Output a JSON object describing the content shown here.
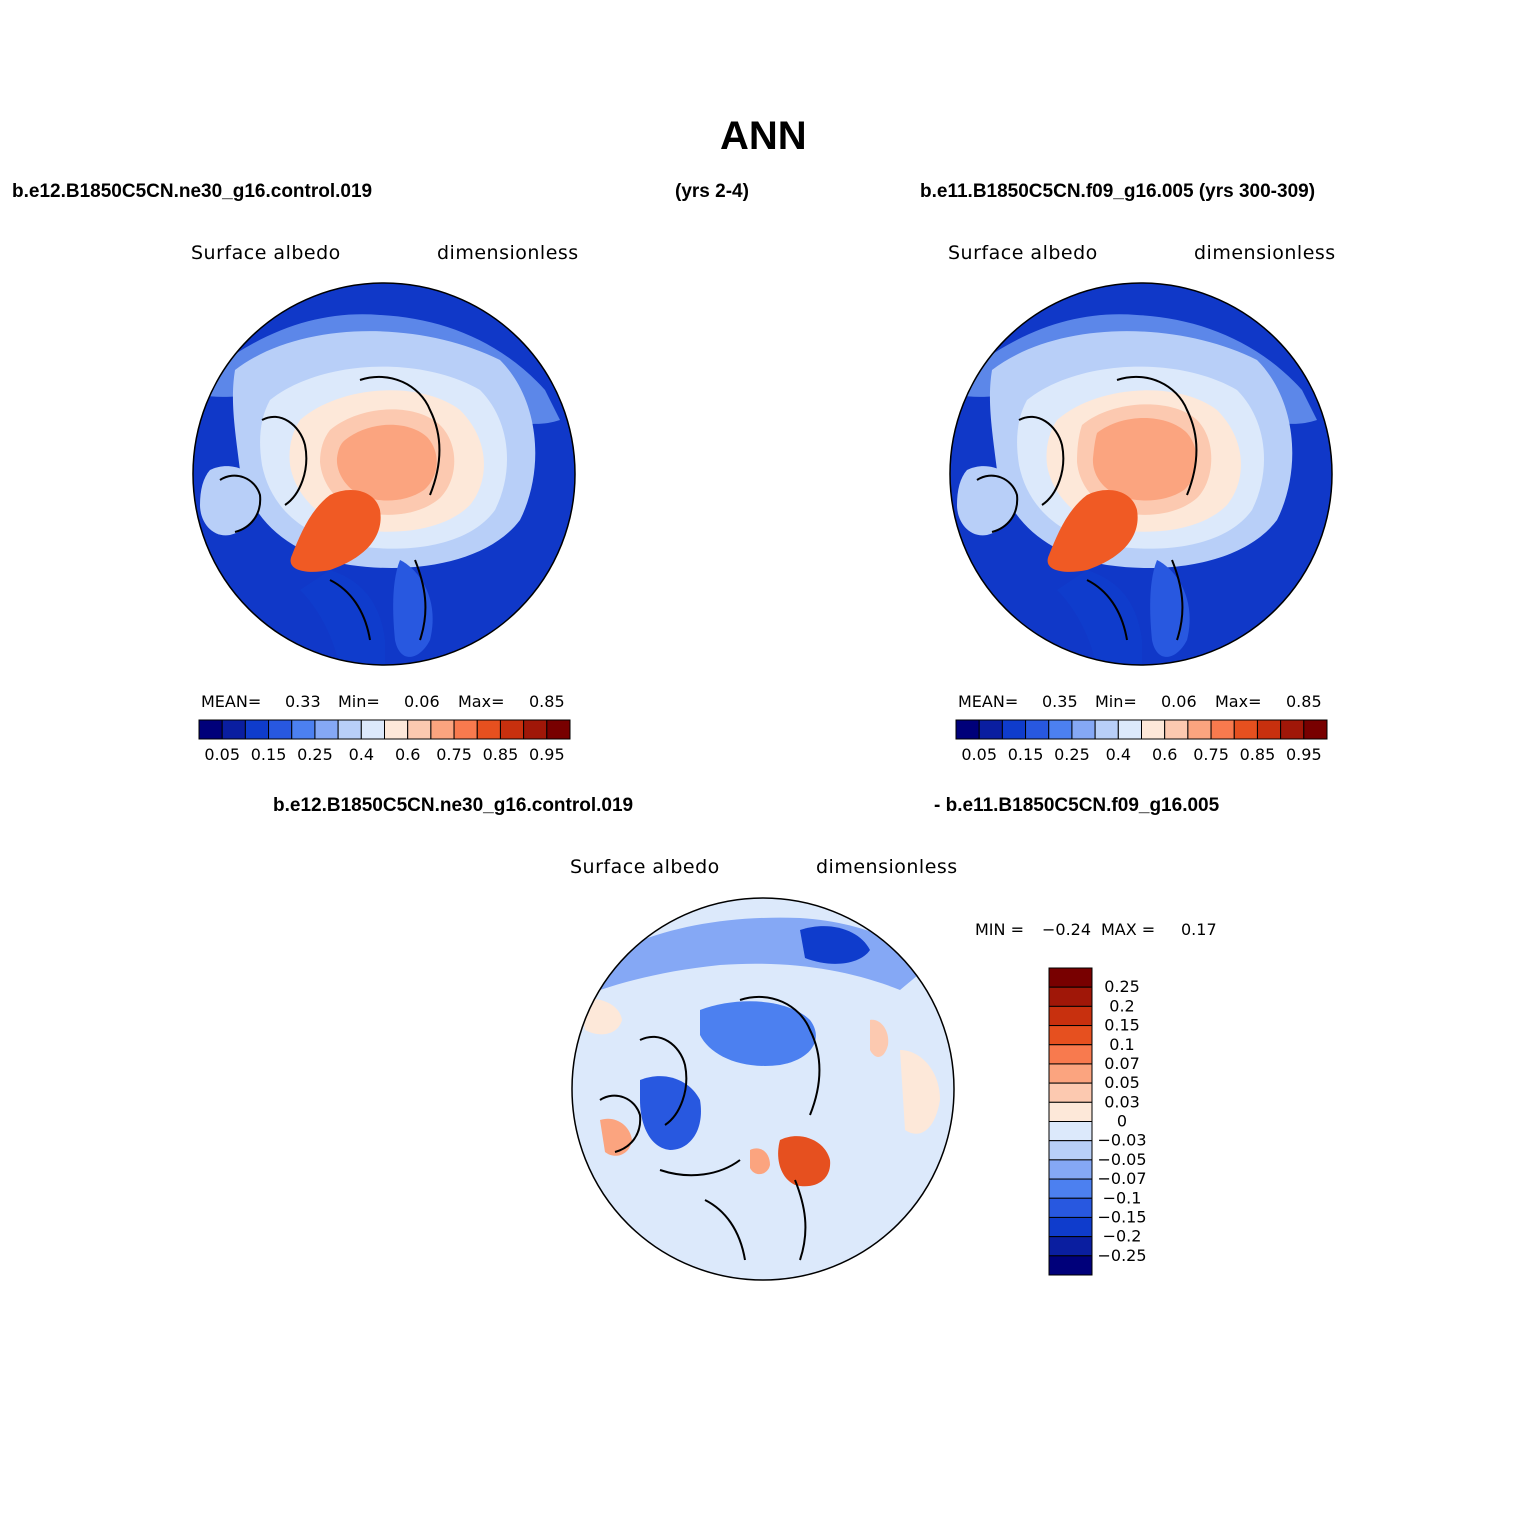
{
  "title": "ANN",
  "header": {
    "case1": "b.e12.B1850C5CN.ne30_g16.control.019",
    "case1_years": "(yrs 2-4)",
    "case2": "b.e11.B1850C5CN.f09_g16.005 (yrs 300-309)",
    "diff_case1": "b.e12.B1850C5CN.ne30_g16.control.019",
    "diff_case2": "- b.e11.B1850C5CN.f09_g16.005"
  },
  "panels": [
    {
      "id": "case1",
      "variable": "Surface albedo",
      "units": "dimensionless",
      "stats": {
        "mean_label": "MEAN=",
        "mean": "0.33",
        "min_label": "Min=",
        "min": "0.06",
        "max_label": "Max=",
        "max": "0.85"
      }
    },
    {
      "id": "case2",
      "variable": "Surface albedo",
      "units": "dimensionless",
      "stats": {
        "mean_label": "MEAN=",
        "mean": "0.35",
        "min_label": "Min=",
        "min": "0.06",
        "max_label": "Max=",
        "max": "0.85"
      }
    },
    {
      "id": "difference",
      "variable": "Surface albedo",
      "units": "dimensionless",
      "stats": {
        "min_label": "MIN =",
        "min": "−0.24",
        "max_label": "MAX =",
        "max": "0.17"
      }
    }
  ],
  "colorbar_abs": {
    "colors": [
      "#00007a",
      "#0a1ea0",
      "#0f3ccc",
      "#2858e0",
      "#4c80f0",
      "#85a8f5",
      "#b8cff8",
      "#dce9fb",
      "#fde8d9",
      "#fcc9b0",
      "#fba47f",
      "#f87a4e",
      "#e6501f",
      "#c8300e",
      "#a01708",
      "#780000"
    ],
    "tick_labels": [
      "0.05",
      "0.15",
      "0.25",
      "0.4",
      "0.6",
      "0.75",
      "0.85",
      "0.95"
    ]
  },
  "colorbar_diff": {
    "colors": [
      "#00007a",
      "#0a1ea0",
      "#0f3ccc",
      "#2858e0",
      "#4c80f0",
      "#85a8f5",
      "#b8cff8",
      "#dce9fb",
      "#fde8d9",
      "#fcc9b0",
      "#fba47f",
      "#f87a4e",
      "#e6501f",
      "#c8300e",
      "#a01708",
      "#780000"
    ],
    "tick_labels": [
      "0.25",
      "0.2",
      "0.15",
      "0.1",
      "0.07",
      "0.05",
      "0.03",
      "0",
      "−0.03",
      "−0.05",
      "−0.07",
      "−0.1",
      "−0.15",
      "−0.2",
      "−0.25"
    ]
  }
}
